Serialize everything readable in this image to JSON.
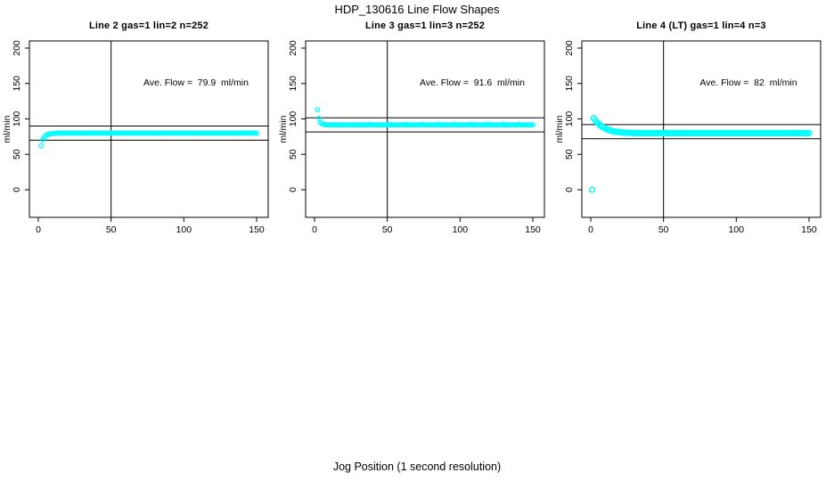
{
  "figure": {
    "title": "HDP_130616  Line Flow Shapes",
    "xlabel": "Jog Position (1 second resolution)",
    "background_color": "#ffffff",
    "axis_color": "#000000",
    "point_color": "#00ffff"
  },
  "chart_data": {
    "type": "scatter",
    "title": "HDP_130616  Line Flow Shapes",
    "xlabel": "Jog Position (1 second resolution)",
    "ylabel": "ml/min",
    "x_ticks": [
      0,
      50,
      100,
      150
    ],
    "y_ticks": [
      0,
      50,
      100,
      150,
      200
    ],
    "xlim": [
      -6,
      157
    ],
    "ylim": [
      -8,
      208
    ],
    "grid": false,
    "legend": "none",
    "marker": "open-circle-cyan",
    "panels": [
      {
        "title": "Line 2 gas=1 lin=2 n=252",
        "annotation": "Ave. Flow =  79.9  ml/min",
        "ave_flow_ml_min": 79.9,
        "n": 252,
        "ref_lines_y": [
          89.9,
          69.9
        ],
        "ref_line_x": 50,
        "marker_radius": 2.3,
        "points": [
          [
            2,
            62
          ],
          [
            3,
            70.5
          ],
          [
            4,
            73.9
          ],
          [
            5,
            76.1
          ],
          [
            6,
            77.5
          ],
          [
            7,
            78.4
          ],
          [
            8,
            78.9
          ],
          [
            9,
            79.2
          ],
          [
            10,
            79.4
          ],
          [
            11,
            79.6
          ],
          [
            12,
            79.7
          ],
          [
            13,
            79.8
          ]
        ],
        "plateau": {
          "x_from": 14,
          "x_to": 150,
          "x_step": 1,
          "y": 79.9
        }
      },
      {
        "title": "Line 3 gas=1 lin=3 n=252",
        "annotation": "Ave. Flow =  91.6  ml/min",
        "ave_flow_ml_min": 91.6,
        "n": 252,
        "ref_lines_y": [
          101.6,
          81.6
        ],
        "ref_line_x": 50,
        "marker_radius": 2.3,
        "points": [
          [
            2,
            113
          ],
          [
            3,
            101
          ],
          [
            4,
            95
          ],
          [
            5,
            93.2
          ],
          [
            6,
            92.4
          ],
          [
            7,
            92
          ],
          [
            8,
            91.8
          ],
          [
            38,
            92.4
          ],
          [
            52,
            92.4
          ],
          [
            63,
            92.4
          ],
          [
            74,
            92.4
          ],
          [
            85,
            92.4
          ],
          [
            96,
            92.4
          ],
          [
            108,
            92.4
          ],
          [
            119,
            92.4
          ],
          [
            130,
            92.4
          ],
          [
            141,
            92.4
          ]
        ],
        "plateau": {
          "x_from": 9,
          "x_to": 150,
          "x_step": 1,
          "y": 91.6
        }
      },
      {
        "title": "Line 4 (LT) gas=1 lin=4 n=3",
        "annotation": "Ave. Flow =  82  ml/min",
        "ave_flow_ml_min": 82,
        "n": 3,
        "ref_lines_y": [
          92,
          72
        ],
        "ref_line_x": 50,
        "marker_radius": 3,
        "points": [
          [
            1,
            0
          ],
          [
            2,
            101
          ],
          [
            3,
            98.2
          ],
          [
            4,
            95.7
          ],
          [
            5,
            93.6
          ],
          [
            6,
            91.8
          ],
          [
            7,
            90.2
          ],
          [
            8,
            88.7
          ],
          [
            9,
            87.5
          ],
          [
            10,
            86.4
          ],
          [
            11,
            85.4
          ],
          [
            12,
            84.6
          ],
          [
            13,
            83.9
          ],
          [
            14,
            83.3
          ],
          [
            15,
            82.8
          ],
          [
            16,
            82.4
          ],
          [
            17,
            82
          ],
          [
            18,
            81.7
          ],
          [
            19,
            81.4
          ],
          [
            20,
            81.2
          ],
          [
            21,
            81
          ],
          [
            22,
            80.8
          ],
          [
            23,
            80.7
          ],
          [
            24,
            80.5
          ],
          [
            25,
            80.4
          ],
          [
            26,
            80.3
          ],
          [
            27,
            80.3
          ],
          [
            28,
            80.2
          ],
          [
            29,
            80.1
          ],
          [
            30,
            80.1
          ]
        ],
        "plateau": {
          "x_from": 31,
          "x_to": 150,
          "x_step": 1,
          "y": 80
        }
      }
    ]
  }
}
